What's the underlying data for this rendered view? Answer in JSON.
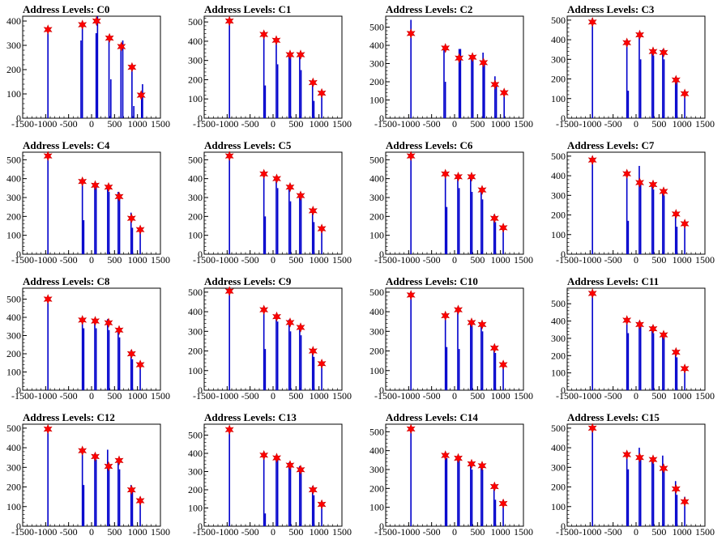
{
  "chart_data": [
    {
      "type": "bar",
      "title": "Address Levels: C0",
      "xlim": [
        -1500,
        1500
      ],
      "ylim": [
        0,
        420
      ],
      "xticks": [
        -1500,
        -1000,
        -500,
        0,
        500,
        1000,
        1500
      ],
      "yticks": [
        0,
        100,
        200,
        300,
        400
      ],
      "x": [
        -950,
        -230,
        -200,
        100,
        130,
        380,
        420,
        640,
        680,
        880,
        920,
        1090,
        1110
      ],
      "values": [
        350,
        320,
        380,
        350,
        420,
        330,
        160,
        300,
        320,
        200,
        50,
        90,
        140
      ],
      "peaks": [
        {
          "x": -950,
          "y": 365
        },
        {
          "x": -200,
          "y": 385
        },
        {
          "x": 110,
          "y": 400
        },
        {
          "x": 390,
          "y": 330
        },
        {
          "x": 650,
          "y": 295
        },
        {
          "x": 880,
          "y": 210
        },
        {
          "x": 1080,
          "y": 95
        }
      ]
    },
    {
      "type": "bar",
      "title": "Address Levels: C1",
      "xlim": [
        -1500,
        1500
      ],
      "ylim": [
        0,
        530
      ],
      "xticks": [
        -1500,
        -1000,
        -500,
        0,
        500,
        1000,
        1500
      ],
      "yticks": [
        0,
        100,
        200,
        300,
        400,
        500
      ],
      "x": [
        -950,
        -200,
        -170,
        70,
        100,
        350,
        380,
        580,
        610,
        860,
        890,
        1060
      ],
      "values": [
        510,
        440,
        170,
        400,
        280,
        330,
        340,
        330,
        250,
        190,
        90,
        130
      ],
      "peaks": [
        {
          "x": -950,
          "y": 505
        },
        {
          "x": -200,
          "y": 435
        },
        {
          "x": 70,
          "y": 405
        },
        {
          "x": 370,
          "y": 330
        },
        {
          "x": 600,
          "y": 330
        },
        {
          "x": 870,
          "y": 185
        },
        {
          "x": 1060,
          "y": 130
        }
      ]
    },
    {
      "type": "bar",
      "title": "Address Levels: C2",
      "xlim": [
        -1500,
        1500
      ],
      "ylim": [
        0,
        560
      ],
      "xticks": [
        -1500,
        -1000,
        -500,
        0,
        500,
        1000,
        1500
      ],
      "yticks": [
        0,
        100,
        200,
        300,
        400,
        500
      ],
      "x": [
        -950,
        -230,
        -200,
        100,
        130,
        370,
        400,
        620,
        650,
        880,
        910,
        1080
      ],
      "values": [
        540,
        380,
        200,
        380,
        380,
        340,
        320,
        360,
        310,
        230,
        180,
        150
      ],
      "peaks": [
        {
          "x": -950,
          "y": 465
        },
        {
          "x": -200,
          "y": 385
        },
        {
          "x": 100,
          "y": 330
        },
        {
          "x": 390,
          "y": 335
        },
        {
          "x": 630,
          "y": 305
        },
        {
          "x": 880,
          "y": 185
        },
        {
          "x": 1080,
          "y": 140
        }
      ]
    },
    {
      "type": "bar",
      "title": "Address Levels: C3",
      "xlim": [
        -1500,
        1500
      ],
      "ylim": [
        0,
        520
      ],
      "xticks": [
        -1500,
        -1000,
        -500,
        0,
        500,
        1000,
        1500
      ],
      "yticks": [
        0,
        100,
        200,
        300,
        400,
        500
      ],
      "x": [
        -950,
        -200,
        -170,
        70,
        100,
        350,
        380,
        580,
        610,
        860,
        890,
        1060
      ],
      "values": [
        510,
        380,
        140,
        420,
        300,
        340,
        320,
        350,
        300,
        210,
        190,
        130
      ],
      "peaks": [
        {
          "x": -950,
          "y": 490
        },
        {
          "x": -200,
          "y": 385
        },
        {
          "x": 80,
          "y": 425
        },
        {
          "x": 370,
          "y": 340
        },
        {
          "x": 600,
          "y": 335
        },
        {
          "x": 870,
          "y": 195
        },
        {
          "x": 1060,
          "y": 125
        }
      ]
    },
    {
      "type": "bar",
      "title": "Address Levels: C4",
      "xlim": [
        -1500,
        1500
      ],
      "ylim": [
        0,
        540
      ],
      "xticks": [
        -1500,
        -1000,
        -500,
        0,
        500,
        1000,
        1500
      ],
      "yticks": [
        0,
        100,
        200,
        300,
        400,
        500
      ],
      "x": [
        -950,
        -200,
        -170,
        70,
        100,
        350,
        380,
        580,
        610,
        860,
        890,
        1060
      ],
      "values": [
        530,
        390,
        180,
        370,
        360,
        360,
        330,
        330,
        320,
        220,
        140,
        140
      ],
      "peaks": [
        {
          "x": -950,
          "y": 520
        },
        {
          "x": -200,
          "y": 385
        },
        {
          "x": 80,
          "y": 365
        },
        {
          "x": 370,
          "y": 355
        },
        {
          "x": 600,
          "y": 305
        },
        {
          "x": 870,
          "y": 190
        },
        {
          "x": 1060,
          "y": 130
        }
      ]
    },
    {
      "type": "bar",
      "title": "Address Levels: C5",
      "xlim": [
        -1500,
        1500
      ],
      "ylim": [
        0,
        540
      ],
      "xticks": [
        -1500,
        -1000,
        -500,
        0,
        500,
        1000,
        1500
      ],
      "yticks": [
        0,
        100,
        200,
        300,
        400,
        500
      ],
      "x": [
        -950,
        -200,
        -170,
        70,
        100,
        350,
        380,
        580,
        610,
        860,
        890,
        1060
      ],
      "values": [
        530,
        420,
        200,
        410,
        350,
        360,
        280,
        320,
        300,
        240,
        170,
        150
      ],
      "peaks": [
        {
          "x": -950,
          "y": 520
        },
        {
          "x": -200,
          "y": 425
        },
        {
          "x": 80,
          "y": 400
        },
        {
          "x": 370,
          "y": 355
        },
        {
          "x": 600,
          "y": 310
        },
        {
          "x": 870,
          "y": 230
        },
        {
          "x": 1060,
          "y": 135
        }
      ]
    },
    {
      "type": "bar",
      "title": "Address Levels: C6",
      "xlim": [
        -1500,
        1500
      ],
      "ylim": [
        0,
        540
      ],
      "xticks": [
        -1500,
        -1000,
        -500,
        0,
        500,
        1000,
        1500
      ],
      "yticks": [
        0,
        100,
        200,
        300,
        400,
        500
      ],
      "x": [
        -950,
        -200,
        -170,
        70,
        100,
        350,
        380,
        580,
        610,
        860,
        890,
        1060
      ],
      "values": [
        530,
        430,
        250,
        400,
        350,
        410,
        330,
        340,
        290,
        210,
        170,
        150
      ],
      "peaks": [
        {
          "x": -950,
          "y": 520
        },
        {
          "x": -200,
          "y": 425
        },
        {
          "x": 80,
          "y": 410
        },
        {
          "x": 370,
          "y": 410
        },
        {
          "x": 600,
          "y": 340
        },
        {
          "x": 870,
          "y": 190
        },
        {
          "x": 1060,
          "y": 140
        }
      ]
    },
    {
      "type": "bar",
      "title": "Address Levels: C7",
      "xlim": [
        -1500,
        1500
      ],
      "ylim": [
        0,
        520
      ],
      "xticks": [
        -1500,
        -1000,
        -500,
        0,
        500,
        1000,
        1500
      ],
      "yticks": [
        0,
        100,
        200,
        300,
        400,
        500
      ],
      "x": [
        -950,
        -200,
        -170,
        70,
        100,
        350,
        380,
        580,
        610,
        860,
        890,
        1060
      ],
      "values": [
        500,
        420,
        170,
        450,
        360,
        360,
        330,
        330,
        300,
        210,
        140,
        150
      ],
      "peaks": [
        {
          "x": -950,
          "y": 480
        },
        {
          "x": -200,
          "y": 410
        },
        {
          "x": 80,
          "y": 365
        },
        {
          "x": 370,
          "y": 355
        },
        {
          "x": 600,
          "y": 320
        },
        {
          "x": 870,
          "y": 205
        },
        {
          "x": 1060,
          "y": 155
        }
      ]
    },
    {
      "type": "bar",
      "title": "Address Levels: C8",
      "xlim": [
        -1500,
        1500
      ],
      "ylim": [
        0,
        560
      ],
      "xticks": [
        -1500,
        -1000,
        -500,
        0,
        500,
        1000,
        1500
      ],
      "yticks": [
        0,
        100,
        200,
        300,
        400,
        500
      ],
      "x": [
        -950,
        -200,
        -170,
        70,
        100,
        350,
        380,
        580,
        610,
        860,
        890,
        1060
      ],
      "values": [
        510,
        390,
        340,
        390,
        340,
        390,
        330,
        340,
        290,
        220,
        170,
        150
      ],
      "peaks": [
        {
          "x": -950,
          "y": 500
        },
        {
          "x": -200,
          "y": 385
        },
        {
          "x": 80,
          "y": 380
        },
        {
          "x": 370,
          "y": 370
        },
        {
          "x": 600,
          "y": 330
        },
        {
          "x": 870,
          "y": 200
        },
        {
          "x": 1060,
          "y": 140
        }
      ]
    },
    {
      "type": "bar",
      "title": "Address Levels: C9",
      "xlim": [
        -1500,
        1500
      ],
      "ylim": [
        0,
        520
      ],
      "xticks": [
        -1500,
        -1000,
        -500,
        0,
        500,
        1000,
        1500
      ],
      "yticks": [
        0,
        100,
        200,
        300,
        400,
        500
      ],
      "x": [
        -950,
        -200,
        -170,
        70,
        100,
        350,
        380,
        580,
        610,
        860,
        890,
        1060
      ],
      "values": [
        510,
        420,
        210,
        380,
        350,
        360,
        300,
        330,
        280,
        210,
        170,
        150
      ],
      "peaks": [
        {
          "x": -950,
          "y": 505
        },
        {
          "x": -200,
          "y": 410
        },
        {
          "x": 80,
          "y": 375
        },
        {
          "x": 370,
          "y": 345
        },
        {
          "x": 600,
          "y": 320
        },
        {
          "x": 870,
          "y": 200
        },
        {
          "x": 1060,
          "y": 135
        }
      ]
    },
    {
      "type": "bar",
      "title": "Address Levels: C10",
      "xlim": [
        -1500,
        1500
      ],
      "ylim": [
        0,
        520
      ],
      "xticks": [
        -1500,
        -1000,
        -500,
        0,
        500,
        1000,
        1500
      ],
      "yticks": [
        0,
        100,
        200,
        300,
        400,
        500
      ],
      "x": [
        -950,
        -200,
        -170,
        70,
        100,
        350,
        380,
        580,
        610,
        860,
        890,
        1060
      ],
      "values": [
        500,
        390,
        220,
        420,
        210,
        340,
        330,
        340,
        300,
        230,
        190,
        140
      ],
      "peaks": [
        {
          "x": -950,
          "y": 485
        },
        {
          "x": -200,
          "y": 380
        },
        {
          "x": 80,
          "y": 410
        },
        {
          "x": 370,
          "y": 345
        },
        {
          "x": 600,
          "y": 335
        },
        {
          "x": 870,
          "y": 215
        },
        {
          "x": 1060,
          "y": 130
        }
      ]
    },
    {
      "type": "bar",
      "title": "Address Levels: C11",
      "xlim": [
        -1500,
        1500
      ],
      "ylim": [
        0,
        590
      ],
      "xticks": [
        -1500,
        -1000,
        -500,
        0,
        500,
        1000,
        1500
      ],
      "yticks": [
        0,
        100,
        200,
        300,
        400,
        500
      ],
      "x": [
        -950,
        -200,
        -170,
        70,
        100,
        350,
        380,
        580,
        610,
        860,
        890,
        1060
      ],
      "values": [
        570,
        410,
        330,
        400,
        370,
        370,
        330,
        330,
        310,
        220,
        190,
        140
      ],
      "peaks": [
        {
          "x": -950,
          "y": 560
        },
        {
          "x": -200,
          "y": 405
        },
        {
          "x": 80,
          "y": 380
        },
        {
          "x": 370,
          "y": 355
        },
        {
          "x": 600,
          "y": 320
        },
        {
          "x": 870,
          "y": 220
        },
        {
          "x": 1060,
          "y": 125
        }
      ]
    },
    {
      "type": "bar",
      "title": "Address Levels: C12",
      "xlim": [
        -1500,
        1500
      ],
      "ylim": [
        0,
        520
      ],
      "xticks": [
        -1500,
        -1000,
        -500,
        0,
        500,
        1000,
        1500
      ],
      "yticks": [
        0,
        100,
        200,
        300,
        400,
        500
      ],
      "x": [
        -950,
        -200,
        -170,
        70,
        100,
        350,
        380,
        580,
        610,
        860,
        890,
        1060
      ],
      "values": [
        510,
        390,
        210,
        370,
        340,
        390,
        300,
        340,
        290,
        210,
        180,
        150
      ],
      "peaks": [
        {
          "x": -950,
          "y": 495
        },
        {
          "x": -200,
          "y": 385
        },
        {
          "x": 80,
          "y": 355
        },
        {
          "x": 370,
          "y": 305
        },
        {
          "x": 600,
          "y": 335
        },
        {
          "x": 870,
          "y": 185
        },
        {
          "x": 1060,
          "y": 130
        }
      ]
    },
    {
      "type": "bar",
      "title": "Address Levels: C13",
      "xlim": [
        -1500,
        1500
      ],
      "ylim": [
        0,
        560
      ],
      "xticks": [
        -1500,
        -1000,
        -500,
        0,
        500,
        1000,
        1500
      ],
      "yticks": [
        0,
        100,
        200,
        300,
        400,
        500
      ],
      "x": [
        -950,
        -200,
        -170,
        70,
        100,
        350,
        380,
        580,
        610,
        860,
        890,
        1060
      ],
      "values": [
        540,
        390,
        70,
        390,
        370,
        350,
        330,
        330,
        300,
        220,
        170,
        140
      ],
      "peaks": [
        {
          "x": -950,
          "y": 530
        },
        {
          "x": -200,
          "y": 390
        },
        {
          "x": 80,
          "y": 375
        },
        {
          "x": 370,
          "y": 335
        },
        {
          "x": 600,
          "y": 310
        },
        {
          "x": 870,
          "y": 200
        },
        {
          "x": 1060,
          "y": 120
        }
      ]
    },
    {
      "type": "bar",
      "title": "Address Levels: C14",
      "xlim": [
        -1500,
        1500
      ],
      "ylim": [
        0,
        540
      ],
      "xticks": [
        -1500,
        -1000,
        -500,
        0,
        500,
        1000,
        1500
      ],
      "yticks": [
        0,
        100,
        200,
        300,
        400,
        500
      ],
      "x": [
        -950,
        -200,
        -170,
        70,
        100,
        350,
        380,
        580,
        610,
        860,
        890,
        1060
      ],
      "values": [
        530,
        380,
        360,
        370,
        350,
        340,
        300,
        330,
        300,
        210,
        140,
        140
      ],
      "peaks": [
        {
          "x": -950,
          "y": 515
        },
        {
          "x": -200,
          "y": 375
        },
        {
          "x": 80,
          "y": 360
        },
        {
          "x": 370,
          "y": 330
        },
        {
          "x": 600,
          "y": 320
        },
        {
          "x": 870,
          "y": 210
        },
        {
          "x": 1060,
          "y": 120
        }
      ]
    },
    {
      "type": "bar",
      "title": "Address Levels: C15",
      "xlim": [
        -1500,
        1500
      ],
      "ylim": [
        0,
        520
      ],
      "xticks": [
        -1500,
        -1000,
        -500,
        0,
        500,
        1000,
        1500
      ],
      "yticks": [
        0,
        100,
        200,
        300,
        400,
        500
      ],
      "x": [
        -950,
        -200,
        -170,
        70,
        100,
        350,
        380,
        580,
        610,
        860,
        890,
        1060
      ],
      "values": [
        510,
        380,
        290,
        400,
        340,
        350,
        320,
        360,
        290,
        230,
        160,
        150
      ],
      "peaks": [
        {
          "x": -950,
          "y": 500
        },
        {
          "x": -200,
          "y": 365
        },
        {
          "x": 80,
          "y": 350
        },
        {
          "x": 370,
          "y": 340
        },
        {
          "x": 600,
          "y": 295
        },
        {
          "x": 870,
          "y": 190
        },
        {
          "x": 1060,
          "y": 125
        }
      ]
    }
  ],
  "colors": {
    "bars": "#0000cc",
    "marker": "#ff0000",
    "marker_edge": "#cc0000",
    "axis": "#000000"
  }
}
